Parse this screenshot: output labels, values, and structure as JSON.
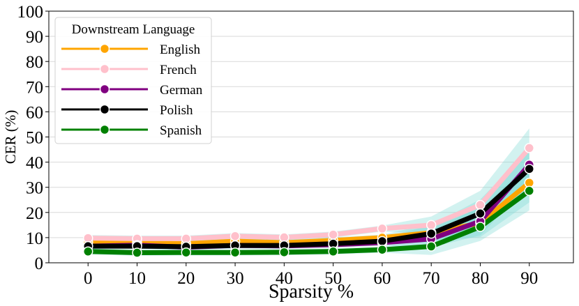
{
  "chart_data": {
    "type": "line",
    "x": [
      0,
      10,
      20,
      30,
      40,
      50,
      60,
      70,
      80,
      90
    ],
    "xlabel": "Sparsity %",
    "ylabel": "CER (%)",
    "xlim": [
      -8,
      99
    ],
    "ylim": [
      0,
      100
    ],
    "yticks": [
      0,
      10,
      20,
      30,
      40,
      50,
      60,
      70,
      80,
      90,
      100
    ],
    "xticks": [
      0,
      10,
      20,
      30,
      40,
      50,
      60,
      70,
      80,
      90
    ],
    "grid": "horizontal",
    "legend": {
      "title": "Downstream Language",
      "placement": "top-left"
    },
    "series": [
      {
        "name": "English",
        "color": "#FFA500",
        "values": [
          8.2,
          8.0,
          7.6,
          8.6,
          8.0,
          8.9,
          10.0,
          12.0,
          15.8,
          31.8
        ]
      },
      {
        "name": "French",
        "color": "#FFC0CB",
        "values": [
          9.8,
          9.6,
          9.6,
          10.6,
          10.1,
          11.2,
          13.6,
          15.0,
          23.0,
          45.6
        ]
      },
      {
        "name": "German",
        "color": "#800080",
        "values": [
          6.6,
          7.0,
          6.2,
          6.9,
          6.7,
          7.2,
          8.0,
          9.5,
          16.5,
          39.0
        ]
      },
      {
        "name": "Polish",
        "color": "#000000",
        "values": [
          6.6,
          6.6,
          6.4,
          6.9,
          6.9,
          7.6,
          8.6,
          11.6,
          19.6,
          37.3
        ]
      },
      {
        "name": "Spanish",
        "color": "#008000",
        "values": [
          4.5,
          4.0,
          4.1,
          4.1,
          4.2,
          4.5,
          5.2,
          6.5,
          14.3,
          28.6
        ]
      }
    ]
  }
}
